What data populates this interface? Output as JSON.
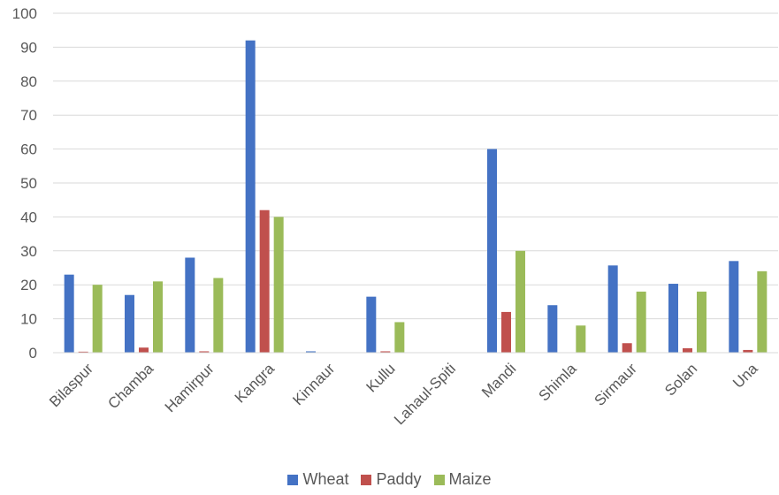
{
  "chart_data": {
    "type": "bar",
    "title": "",
    "xlabel": "",
    "ylabel": "",
    "ylim": [
      0,
      100
    ],
    "yticks": [
      0,
      10,
      20,
      30,
      40,
      50,
      60,
      70,
      80,
      90,
      100
    ],
    "grid": true,
    "legend_position": "bottom",
    "categories": [
      "Bilaspur",
      "Chamba",
      "Hamirpur",
      "Kangra",
      "Kinnaur",
      "Kullu",
      "Lahaul-Spiti",
      "Mandi",
      "Shimla",
      "Sirmaur",
      "Solan",
      "Una"
    ],
    "series": [
      {
        "name": "Wheat",
        "color": "#4472C4",
        "values": [
          23,
          17,
          28,
          92,
          0.4,
          16.5,
          0,
          60,
          14,
          25.7,
          20.3,
          27
        ]
      },
      {
        "name": "Paddy",
        "color": "#C0504D",
        "values": [
          0.3,
          1.5,
          0.4,
          42,
          0.1,
          0.4,
          0,
          12,
          0,
          2.8,
          1.3,
          0.8
        ]
      },
      {
        "name": "Maize",
        "color": "#9BBB59",
        "values": [
          20,
          21,
          22,
          40,
          0,
          9,
          0,
          30,
          8,
          18,
          18,
          24
        ]
      }
    ]
  }
}
